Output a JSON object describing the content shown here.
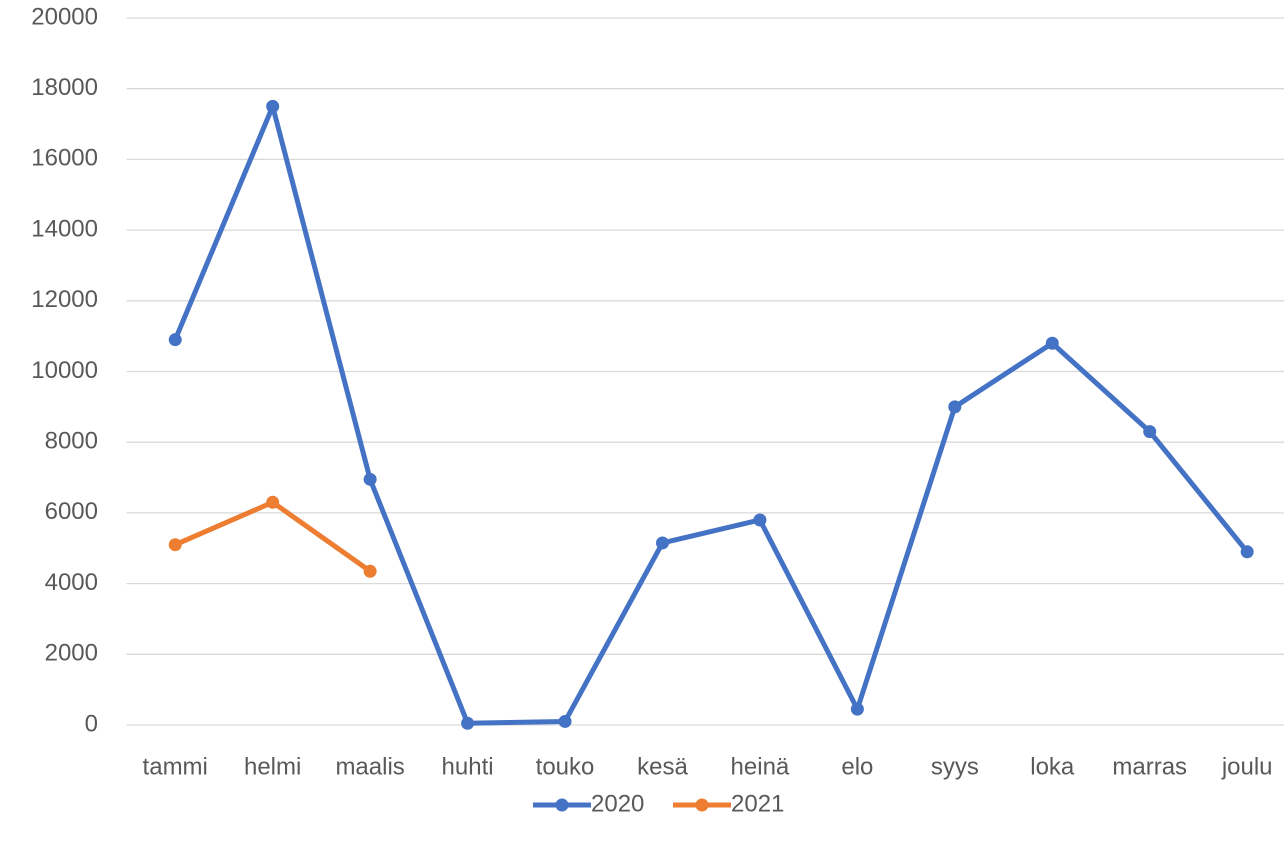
{
  "chart_data": {
    "type": "line",
    "categories": [
      "tammi",
      "helmi",
      "maalis",
      "huhti",
      "touko",
      "kesä",
      "heinä",
      "elo",
      "syys",
      "loka",
      "marras",
      "joulu"
    ],
    "series": [
      {
        "name": "2020",
        "color": "#4472c4",
        "values": [
          10900,
          17500,
          6950,
          50,
          100,
          5150,
          5800,
          450,
          9000,
          10800,
          8300,
          4900
        ]
      },
      {
        "name": "2021",
        "color": "#ed7d31",
        "values": [
          5100,
          6300,
          4350,
          null,
          null,
          null,
          null,
          null,
          null,
          null,
          null,
          null
        ]
      }
    ],
    "ylim": [
      0,
      20000
    ],
    "yticks": [
      0,
      2000,
      4000,
      6000,
      8000,
      10000,
      12000,
      14000,
      16000,
      18000,
      20000
    ],
    "grid": true,
    "legend": "bottom"
  }
}
